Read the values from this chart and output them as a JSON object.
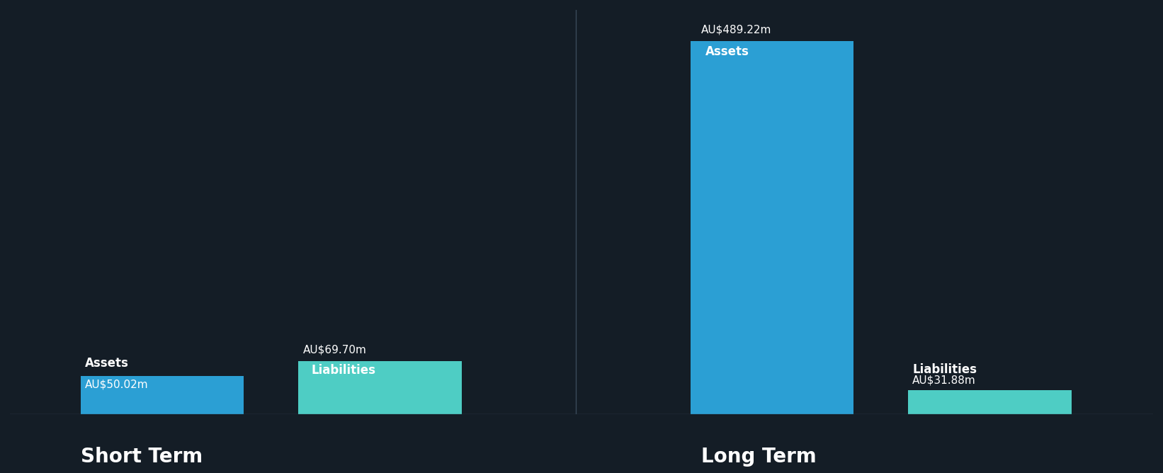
{
  "background_color": "#141d26",
  "short_term": {
    "assets_value": 50.02,
    "liabilities_value": 69.7,
    "assets_label": "Assets",
    "liabilities_label": "Liabilities",
    "assets_amount_text": "AU$50.02m",
    "liabilities_amount_text": "AU$69.70m",
    "assets_color": "#2b9fd4",
    "liabilities_color": "#4ecdc4",
    "x_label": "Short Term"
  },
  "long_term": {
    "assets_value": 489.22,
    "liabilities_value": 31.88,
    "assets_label": "Assets",
    "liabilities_label": "Liabilities",
    "assets_amount_text": "AU$489.22m",
    "liabilities_amount_text": "AU$31.88m",
    "assets_color": "#2b9fd4",
    "liabilities_color": "#4ecdc4",
    "x_label": "Long Term"
  },
  "ylim_max": 530,
  "text_color": "#ffffff",
  "label_fontsize": 12,
  "value_fontsize": 11,
  "xlabel_fontsize": 20,
  "inner_label_fontsize": 12,
  "divider_color": "#3a4a5a"
}
